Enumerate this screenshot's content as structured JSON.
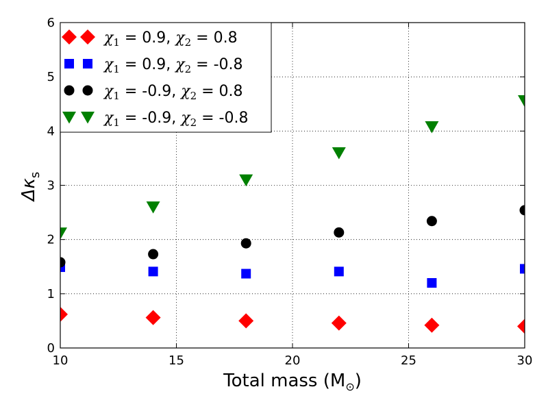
{
  "chart_data": {
    "type": "scatter",
    "xlabel": "Total mass (M",
    "xlabel_sub": "⊙",
    "xlabel_close": ")",
    "ylabel": "Δκ",
    "ylabel_sub": "s",
    "xlim": [
      10,
      30
    ],
    "ylim": [
      0,
      6
    ],
    "xticks": [
      "10",
      "15",
      "20",
      "25",
      "30"
    ],
    "yticks": [
      "0",
      "1",
      "2",
      "3",
      "4",
      "5",
      "6"
    ],
    "grid": true,
    "legend_position": "top-left",
    "x": [
      10,
      14,
      18,
      22,
      26,
      30
    ],
    "series": [
      {
        "name": "χ1 = 0.9, χ2 = 0.8",
        "label_parts": [
          "χ",
          "1",
          " = 0.9, ",
          "χ",
          "2",
          " = 0.8"
        ],
        "marker": "diamond",
        "color": "#ff0000",
        "values": [
          0.62,
          0.56,
          0.5,
          0.46,
          0.42,
          0.4
        ]
      },
      {
        "name": "χ1 = 0.9, χ2 = -0.8",
        "label_parts": [
          "χ",
          "1",
          " = 0.9, ",
          "χ",
          "2",
          " = -0.8"
        ],
        "marker": "square",
        "color": "#0000ff",
        "values": [
          1.49,
          1.41,
          1.37,
          1.41,
          1.2,
          1.46
        ]
      },
      {
        "name": "χ1 = -0.9, χ2 = 0.8",
        "label_parts": [
          "χ",
          "1",
          " = -0.9, ",
          "χ",
          "2",
          " = 0.8"
        ],
        "marker": "circle",
        "color": "#000000",
        "values": [
          1.58,
          1.73,
          1.93,
          2.13,
          2.34,
          2.54
        ]
      },
      {
        "name": "χ1 = -0.9, χ2 = -0.8",
        "label_parts": [
          "χ",
          "1",
          " = -0.9, ",
          "χ",
          "2",
          " = -0.8"
        ],
        "marker": "triangle-down",
        "color": "#008000",
        "values": [
          2.12,
          2.6,
          3.1,
          3.6,
          4.08,
          4.56
        ]
      }
    ]
  }
}
